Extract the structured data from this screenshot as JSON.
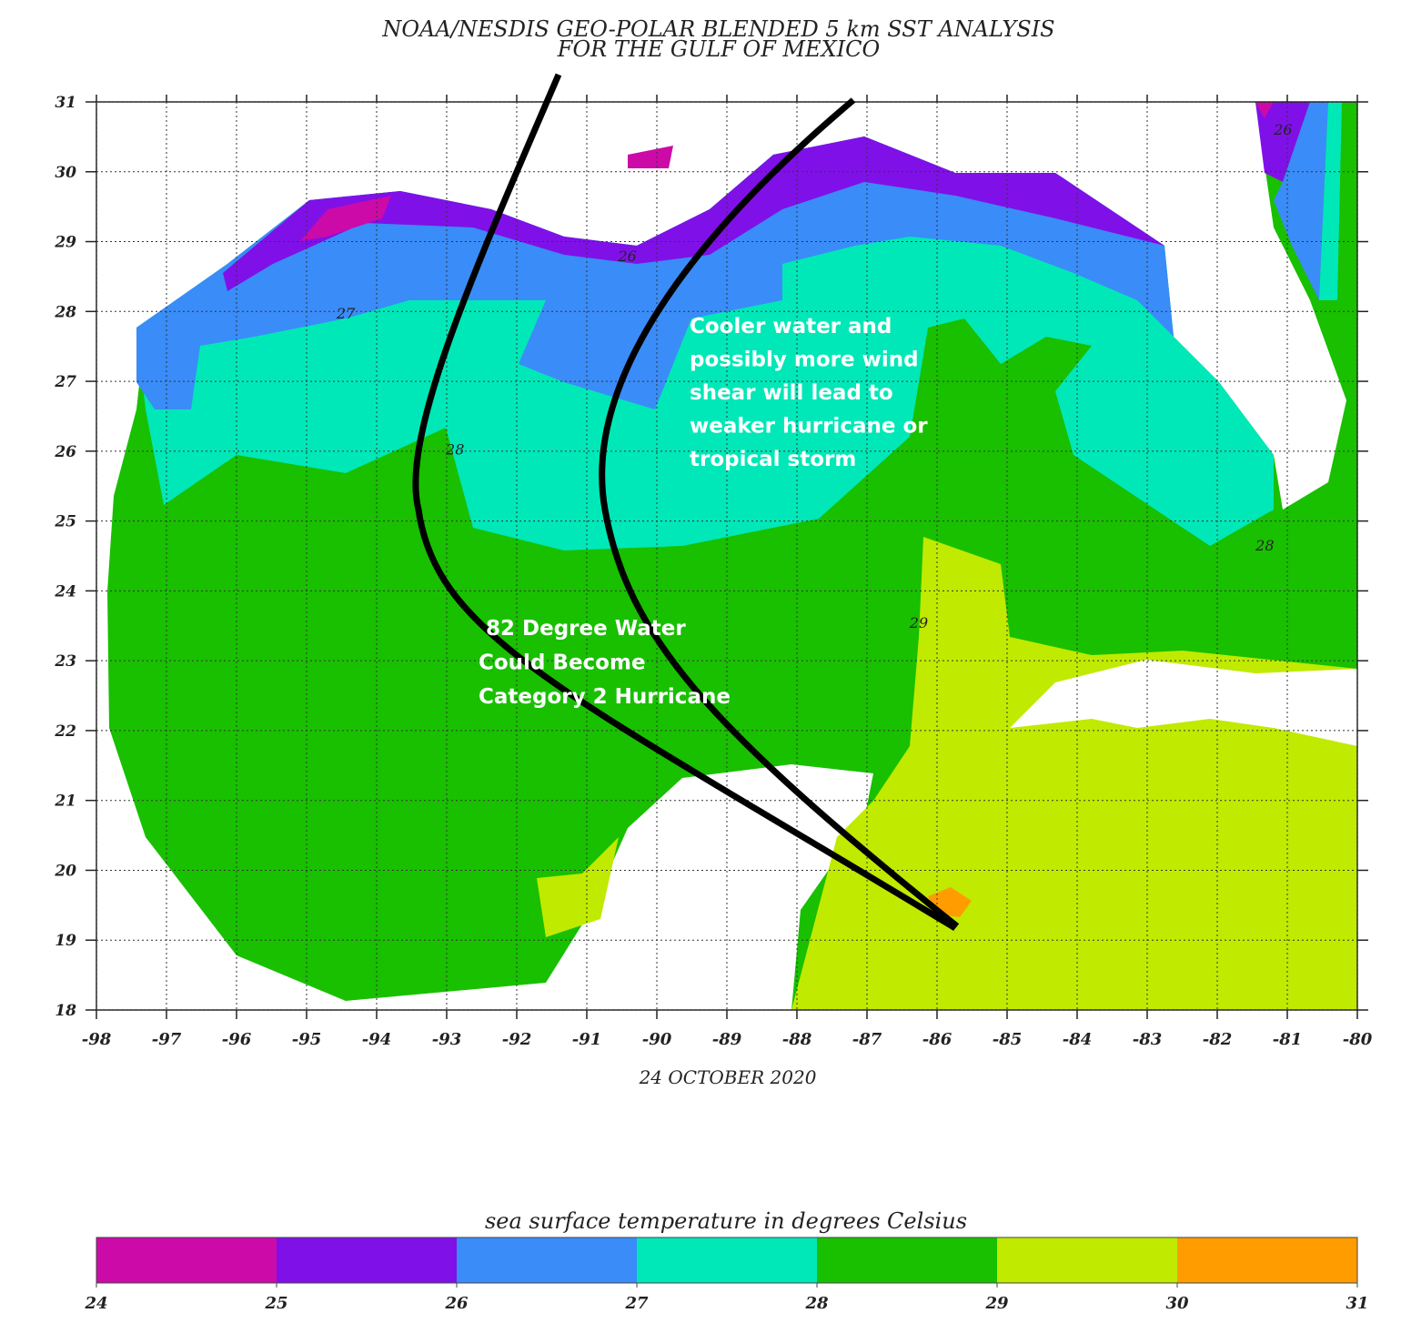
{
  "map": {
    "title": [
      "NOAA/NESDIS GEO-POLAR BLENDED 5 km SST ANALYSIS",
      "FOR THE GULF OF MEXICO"
    ],
    "date": "24 OCTOBER 2020",
    "xlim": [
      -98,
      -80
    ],
    "ylim": [
      18,
      31
    ],
    "xticks": [
      -98,
      -97,
      -96,
      -95,
      -94,
      -93,
      -92,
      -91,
      -90,
      -89,
      -88,
      -87,
      -86,
      -85,
      -84,
      -83,
      -82,
      -81,
      -80
    ],
    "yticks": [
      18,
      19,
      20,
      21,
      22,
      23,
      24,
      25,
      26,
      27,
      28,
      29,
      30,
      31
    ],
    "grid": true,
    "contour_labels": [
      {
        "value": 26,
        "lon": -90.42,
        "lat": 28.72
      },
      {
        "value": 27,
        "lon": -94.44,
        "lat": 27.9
      },
      {
        "value": 28,
        "lon": -92.88,
        "lat": 25.95
      },
      {
        "value": 29,
        "lon": -86.26,
        "lat": 23.47
      },
      {
        "value": 28,
        "lon": -81.32,
        "lat": 24.58
      },
      {
        "value": 26,
        "lon": -81.06,
        "lat": 30.53
      }
    ],
    "annotations": [
      [
        "Cooler water and",
        "possibly more wind",
        "shear will lead to",
        "weaker hurricane or",
        "tropical storm"
      ],
      [
        "82 Degree Water",
        "Could Become",
        "Category 2 Hurricane"
      ]
    ],
    "colorbar": {
      "label": "sea surface temperature in degrees Celsius",
      "ticks": [
        24,
        25,
        26,
        27,
        28,
        29,
        30,
        31
      ],
      "colors": [
        "#cc0aa8",
        "#8010e8",
        "#3a8cf8",
        "#00e8b8",
        "#18c000",
        "#c0ea00",
        "#ff9c00"
      ]
    }
  }
}
